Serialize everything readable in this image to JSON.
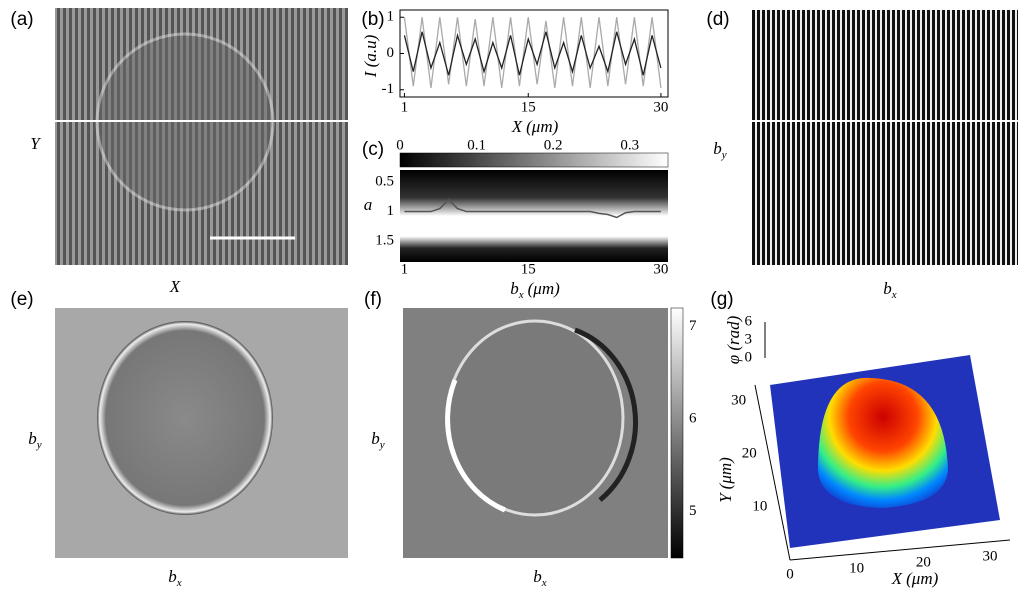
{
  "panels": {
    "a": {
      "label": "(a)",
      "xlabel": "X",
      "ylabel": "Y"
    },
    "b": {
      "label": "(b)",
      "type": "line",
      "ylabel": "I (a.u)",
      "xlabel": {
        "main": "X",
        "unit": "(μm)"
      },
      "xlim": [
        0.5,
        30.8
      ],
      "ylim": [
        -1.2,
        1.2
      ],
      "xticks": [
        1,
        15,
        30
      ],
      "yticks": [
        -1,
        0,
        1
      ],
      "x": [
        1,
        2,
        3,
        4,
        5,
        6,
        7,
        8,
        9,
        10,
        11,
        12,
        13,
        14,
        15,
        16,
        17,
        18,
        19,
        20,
        21,
        22,
        23,
        24,
        25,
        26,
        27,
        28,
        29,
        30
      ],
      "series": [
        {
          "color": "#aaaaaa",
          "values": [
            1,
            -0.9,
            1,
            -0.95,
            1,
            -0.85,
            1,
            -0.9,
            0.95,
            -0.9,
            1,
            -0.95,
            1,
            -0.9,
            1,
            -0.85,
            0.9,
            -0.95,
            1,
            -0.9,
            1,
            -0.95,
            1,
            -0.9,
            1,
            -0.85,
            1,
            -0.9,
            1,
            -0.95
          ]
        },
        {
          "color": "#222222",
          "values": [
            0.5,
            -0.5,
            0.6,
            -0.4,
            0.3,
            -0.6,
            0.5,
            -0.3,
            0.4,
            -0.5,
            0.3,
            -0.4,
            0.5,
            -0.6,
            0.4,
            -0.3,
            0.6,
            -0.4,
            0.3,
            -0.5,
            0.5,
            -0.4,
            0.2,
            -0.5,
            0.6,
            -0.3,
            0.4,
            -0.6,
            0.5,
            -0.4
          ]
        }
      ]
    },
    "c": {
      "label": "(c)",
      "type": "heatmap",
      "ylabel": "a",
      "xlabel": {
        "main": "b",
        "sub": "x",
        "unit": "(μm)"
      },
      "xlim": [
        0.5,
        30.8
      ],
      "ylim": [
        0.3,
        1.85
      ],
      "xticks": [
        1,
        15,
        30
      ],
      "yticks": [
        0.5,
        1,
        1.5
      ],
      "clim": [
        0,
        0.35
      ],
      "cticks": [
        0,
        0.1,
        0.2,
        0.3
      ],
      "x": [
        1,
        2,
        3,
        4,
        5,
        6,
        7,
        8,
        9,
        10,
        11,
        12,
        13,
        14,
        15,
        16,
        17,
        18,
        19,
        20,
        21,
        22,
        23,
        24,
        25,
        26,
        27,
        28,
        29,
        30
      ],
      "ridge": [
        1,
        1,
        1,
        1,
        0.95,
        0.8,
        0.95,
        1,
        1,
        1,
        1,
        1,
        1,
        1,
        1,
        1,
        1,
        1,
        1,
        1,
        1,
        1,
        1.03,
        1.05,
        1.1,
        1.02,
        1,
        1,
        1,
        1
      ]
    },
    "d": {
      "label": "(d)",
      "xlabel": {
        "main": "b",
        "sub": "x"
      },
      "ylabel": {
        "main": "b",
        "sub": "y"
      }
    },
    "e": {
      "label": "(e)",
      "xlabel": {
        "main": "b",
        "sub": "x"
      },
      "ylabel": {
        "main": "b",
        "sub": "y"
      }
    },
    "f": {
      "label": "(f)",
      "xlabel": {
        "main": "b",
        "sub": "x"
      },
      "ylabel": {
        "main": "b",
        "sub": "y"
      },
      "clim": [
        4.5,
        7.2
      ],
      "cticks": [
        5,
        6,
        7
      ]
    },
    "g": {
      "label": "(g)",
      "zlabel": "φ (rad)",
      "zlim": [
        0,
        6
      ],
      "zticks": [
        0,
        3,
        6
      ],
      "ylabel": {
        "main": "Y",
        "unit": "(μm)"
      },
      "ylim": [
        0,
        33
      ],
      "yticks": [
        10,
        20,
        30
      ],
      "xlabel": {
        "main": "X",
        "unit": "(μm)"
      },
      "xlim": [
        0,
        33
      ],
      "xticks": [
        0,
        10,
        20,
        30
      ]
    }
  }
}
